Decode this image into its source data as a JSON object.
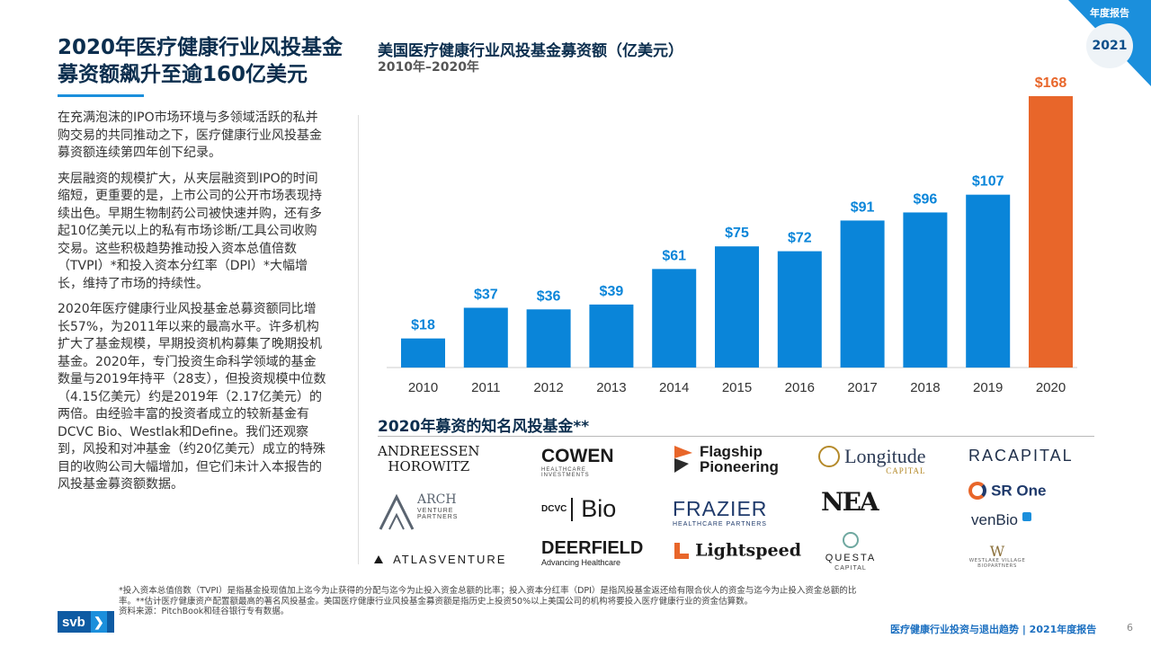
{
  "header": {
    "title": "2020年医疗健康行业风投基金募资额飙升至逾160亿美元",
    "corner_label": "年度报告",
    "year_badge": "2021"
  },
  "body": {
    "paragraphs": [
      "在充满泡沫的IPO市场环境与多领域活跃的私并购交易的共同推动之下，医疗健康行业风投基金募资额连续第四年创下纪录。",
      "夹层融资的规模扩大，从夹层融资到IPO的时间缩短，更重要的是，上市公司的公开市场表现持续出色。早期生物制药公司被快速并购，还有多起10亿美元以上的私有市场诊断/工具公司收购交易。这些积极趋势推动投入资本总值倍数（TVPI）*和投入资本分红率（DPI）*大幅增长，维持了市场的持续性。",
      "2020年医疗健康行业风投基金总募资额同比增长57%，为2011年以来的最高水平。许多机构扩大了基金规模，早期投资机构募集了晚期投机基金。2020年，专门投资生命科学领域的基金数量与2019年持平（28支），但投资规模中位数（4.15亿美元）约是2019年（2.17亿美元）的两倍。由经验丰富的投资者成立的较新基金有DCVC Bio、Westlak和Define。我们还观察到，风投和对冲基金（约20亿美元）成立的特殊目的收购公司大幅增加，但它们未计入本报告的风投基金募资额数据。"
    ]
  },
  "chart_data": {
    "type": "bar",
    "title": "美国医疗健康行业风投基金募资额（亿美元）",
    "subtitle": "2010年–2020年",
    "categories": [
      "2010",
      "2011",
      "2012",
      "2013",
      "2014",
      "2015",
      "2016",
      "2017",
      "2018",
      "2019",
      "2020"
    ],
    "values": [
      18,
      37,
      36,
      39,
      61,
      75,
      72,
      91,
      96,
      107,
      168
    ],
    "labels": [
      "$18",
      "$37",
      "$36",
      "$39",
      "$61",
      "$75",
      "$72",
      "$91",
      "$96",
      "$107",
      "$168"
    ],
    "ylim": [
      0,
      168
    ],
    "grid": false,
    "colors": {
      "default": "#0a85d9",
      "highlight": "#e8662a",
      "highlight_category": "2020"
    }
  },
  "funds": {
    "title": "2020年募资的知名风投基金**",
    "logos": {
      "andreessen": [
        "ANDREESSEN",
        "HOROWITZ"
      ],
      "cowen": [
        "COWEN",
        "HEALTHCARE",
        "INVESTMENTS"
      ],
      "flagship": [
        "Flagship",
        "Pioneering"
      ],
      "longitude": [
        "Longitude",
        "CAPITAL"
      ],
      "racapital": "RACAPITAL",
      "arch": [
        "ARCH",
        "VENTURE",
        "PARTNERS"
      ],
      "dcvc_prefix": "DCVC",
      "dcvc_bio": "Bio",
      "frazier": [
        "FRAZIER",
        "HEALTHCARE PARTNERS"
      ],
      "nea": "NEA",
      "srone": "SR One",
      "venbio": "venBio",
      "atlas": "ATLASVENTURE",
      "deerfield": [
        "DEERFIELD",
        "Advancing Healthcare"
      ],
      "lightspeed": "Lightspeed",
      "questa": [
        "QUESTA",
        "CAPITAL"
      ],
      "westlake": [
        "WESTLAKE VILLAGE",
        "BIOPARTNERS"
      ]
    }
  },
  "footer": {
    "footnote_1": "*投入资本总值倍数（TVPI）是指基金投现值加上迄今为止获得的分配与迄今为止投入资金总额的比率；投入资本分红率（DPI）是指风投基金返还给有限合伙人的资金与迄今为止投入资金总额的比率。**估计医疗健康资产配置额最高的著名风投基金。美国医疗健康行业风投基金募资额是指历史上投资50%以上美国公司的机构将要投入医疗健康行业的资金估算数。",
    "footnote_2": "资料来源：PitchBook和硅谷银行专有数据。",
    "brand": "svb",
    "report": "医疗健康行业投资与退出趋势 | 2021年度报告",
    "page": "6"
  }
}
